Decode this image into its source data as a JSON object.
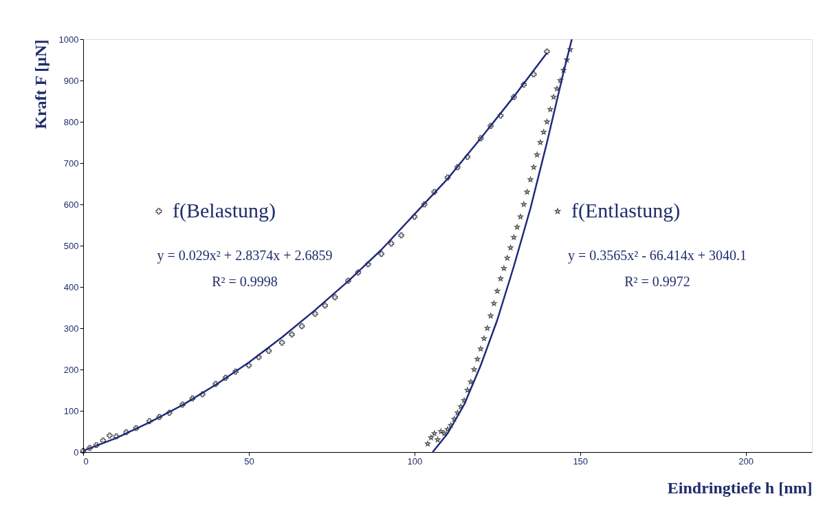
{
  "chart_data": {
    "type": "scatter",
    "xlabel": "Eindringtiefe h [nm]",
    "ylabel": "Kraft F [µN]",
    "xlim": [
      0,
      220
    ],
    "xticks": [
      0,
      50,
      100,
      150,
      200
    ],
    "ylim": [
      0,
      1000
    ],
    "yticks": [
      0,
      100,
      200,
      300,
      400,
      500,
      600,
      700,
      800,
      900,
      1000
    ],
    "grid": false,
    "legend": "top",
    "series": [
      {
        "name": "f(Belastung)",
        "type": "scatter",
        "marker": "cross",
        "color": "#000000",
        "x": [
          0,
          2,
          4,
          6,
          8,
          10,
          13,
          16,
          20,
          23,
          26,
          30,
          33,
          36,
          40,
          43,
          46,
          50,
          53,
          56,
          60,
          63,
          66,
          70,
          73,
          76,
          80,
          83,
          86,
          90,
          93,
          96,
          100,
          103,
          106,
          110,
          113,
          116,
          120,
          123,
          126,
          130,
          133,
          136,
          140
        ],
        "values": [
          3,
          10,
          17,
          28,
          40,
          38,
          48,
          58,
          75,
          85,
          95,
          115,
          130,
          140,
          165,
          180,
          195,
          210,
          230,
          245,
          265,
          285,
          305,
          335,
          355,
          375,
          415,
          435,
          455,
          480,
          505,
          525,
          570,
          600,
          630,
          665,
          690,
          715,
          760,
          790,
          815,
          860,
          890,
          915,
          970
        ]
      },
      {
        "name": "f(Entlastung)",
        "type": "scatter",
        "marker": "star",
        "color": "#000000",
        "x": [
          104,
          105,
          106,
          107,
          108,
          109,
          110,
          111,
          112,
          113,
          114,
          115,
          116,
          117,
          118,
          119,
          120,
          121,
          122,
          123,
          124,
          125,
          126,
          127,
          128,
          129,
          130,
          131,
          132,
          133,
          134,
          135,
          136,
          137,
          138,
          139,
          140,
          141,
          142,
          143,
          144,
          145,
          146,
          147
        ],
        "values": [
          20,
          35,
          45,
          30,
          50,
          45,
          55,
          65,
          80,
          95,
          110,
          125,
          150,
          170,
          200,
          225,
          250,
          275,
          300,
          330,
          360,
          390,
          420,
          445,
          470,
          495,
          520,
          545,
          570,
          600,
          630,
          660,
          690,
          720,
          750,
          775,
          800,
          830,
          860,
          880,
          900,
          925,
          950,
          975
        ]
      },
      {
        "type": "line",
        "color": "#1f2a7a",
        "x": [
          0,
          10,
          20,
          30,
          40,
          50,
          60,
          70,
          80,
          90,
          100,
          110,
          120,
          130,
          140
        ],
        "values": [
          3,
          34,
          72,
          114,
          163,
          217,
          278,
          344,
          414,
          490,
          576,
          662,
          760,
          861,
          967
        ]
      },
      {
        "type": "line",
        "color": "#1f2a7a",
        "x": [
          105.5,
          110,
          115,
          120,
          125,
          130,
          135,
          140,
          145,
          147.5
        ],
        "values": [
          0,
          45,
          115,
          210,
          320,
          450,
          590,
          750,
          920,
          1000
        ]
      }
    ],
    "annotations": [
      "y = 0.029x² + 2.8374x + 2.6859",
      "R² = 0.9998",
      "y = 0.3565x² - 66.414x + 3040.1",
      "R² = 0.9972"
    ]
  }
}
